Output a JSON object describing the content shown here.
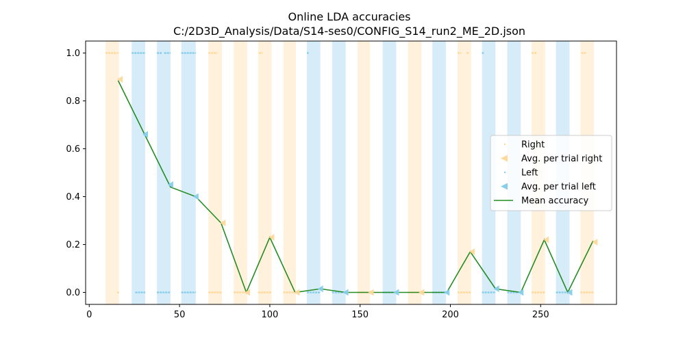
{
  "chart_data": {
    "type": "scatter",
    "title": "Online LDA accuracies",
    "subtitle": "C:/2D3D_Analysis/Data/S14-ses0/CONFIG_S14_run2_ME_2D.json",
    "xlim": [
      -2,
      292
    ],
    "ylim": [
      -0.05,
      1.05
    ],
    "xticks": [
      0,
      50,
      100,
      150,
      200,
      250
    ],
    "yticks": [
      0.0,
      0.2,
      0.4,
      0.6,
      0.8,
      1.0
    ],
    "ytick_labels": [
      "0.0",
      "0.2",
      "0.4",
      "0.6",
      "0.8",
      "1.0"
    ],
    "grid": false,
    "legend_location": "center-right",
    "colors": {
      "right": "#ffd89a",
      "right_band": "#fff1db",
      "left": "#87ceeb",
      "left_band": "#d6ecf9",
      "mean": "#228b22"
    },
    "bands": [
      {
        "class": "right",
        "x0": 9,
        "x1": 16.5
      },
      {
        "class": "left",
        "x0": 23.5,
        "x1": 31
      },
      {
        "class": "left",
        "x0": 37.5,
        "x1": 45
      },
      {
        "class": "left",
        "x0": 51,
        "x1": 59
      },
      {
        "class": "right",
        "x0": 66,
        "x1": 73.5
      },
      {
        "class": "right",
        "x0": 80,
        "x1": 87.5
      },
      {
        "class": "right",
        "x0": 93.5,
        "x1": 101
      },
      {
        "class": "right",
        "x0": 107.5,
        "x1": 114.5
      },
      {
        "class": "left",
        "x0": 120.5,
        "x1": 128
      },
      {
        "class": "left",
        "x0": 134.5,
        "x1": 142
      },
      {
        "class": "right",
        "x0": 148.5,
        "x1": 155.5
      },
      {
        "class": "left",
        "x0": 162.5,
        "x1": 170
      },
      {
        "class": "right",
        "x0": 176.5,
        "x1": 184
      },
      {
        "class": "left",
        "x0": 190,
        "x1": 197.5
      },
      {
        "class": "right",
        "x0": 204,
        "x1": 211.5
      },
      {
        "class": "left",
        "x0": 217.5,
        "x1": 225
      },
      {
        "class": "left",
        "x0": 231.5,
        "x1": 239
      },
      {
        "class": "right",
        "x0": 245,
        "x1": 252.5
      },
      {
        "class": "left",
        "x0": 258.5,
        "x1": 266
      },
      {
        "class": "right",
        "x0": 272,
        "x1": 279.5
      }
    ],
    "series": [
      {
        "name": "Right",
        "segments": [
          {
            "x0": 9,
            "x1": 16,
            "y": 1
          },
          {
            "x0": 15.5,
            "x1": 16.5,
            "y": 0
          },
          {
            "x0": 66,
            "x1": 71,
            "y": 1
          },
          {
            "x0": 66,
            "x1": 73.5,
            "y": 0
          },
          {
            "x0": 80,
            "x1": 87.5,
            "y": 0
          },
          {
            "x0": 94,
            "x1": 96,
            "y": 1
          },
          {
            "x0": 93.5,
            "x1": 101,
            "y": 0
          },
          {
            "x0": 107.5,
            "x1": 114.5,
            "y": 0
          },
          {
            "x0": 148.5,
            "x1": 155.5,
            "y": 0
          },
          {
            "x0": 176.5,
            "x1": 184,
            "y": 0
          },
          {
            "x0": 204,
            "x1": 206,
            "y": 1
          },
          {
            "x0": 209,
            "x1": 210.5,
            "y": 1
          },
          {
            "x0": 204,
            "x1": 211.5,
            "y": 0
          },
          {
            "x0": 245,
            "x1": 248,
            "y": 1
          },
          {
            "x0": 245,
            "x1": 252.5,
            "y": 0
          },
          {
            "x0": 272.5,
            "x1": 275,
            "y": 1
          },
          {
            "x0": 272,
            "x1": 279.5,
            "y": 0
          }
        ]
      },
      {
        "name": "Avg. per trial right",
        "points": [
          {
            "x": 17,
            "y": 0.89
          },
          {
            "x": 74,
            "y": 0.29
          },
          {
            "x": 87.5,
            "y": 0.0
          },
          {
            "x": 101,
            "y": 0.23
          },
          {
            "x": 115,
            "y": 0.0
          },
          {
            "x": 156,
            "y": 0.0
          },
          {
            "x": 184,
            "y": 0.0
          },
          {
            "x": 212,
            "y": 0.17
          },
          {
            "x": 253,
            "y": 0.22
          },
          {
            "x": 280,
            "y": 0.21
          }
        ]
      },
      {
        "name": "Left",
        "segments": [
          {
            "x0": 23.5,
            "x1": 31,
            "y": 1
          },
          {
            "x0": 37.5,
            "x1": 40.5,
            "y": 1
          },
          {
            "x0": 41.5,
            "x1": 45,
            "y": 1
          },
          {
            "x0": 51,
            "x1": 59,
            "y": 1
          },
          {
            "x0": 120.5,
            "x1": 121.5,
            "y": 1
          },
          {
            "x0": 217.5,
            "x1": 218.5,
            "y": 1
          },
          {
            "x0": 25.5,
            "x1": 31,
            "y": 0
          },
          {
            "x0": 37.5,
            "x1": 45,
            "y": 0
          },
          {
            "x0": 51,
            "x1": 59,
            "y": 0
          },
          {
            "x0": 120.5,
            "x1": 128,
            "y": 0
          },
          {
            "x0": 134.5,
            "x1": 142,
            "y": 0
          },
          {
            "x0": 162.5,
            "x1": 170,
            "y": 0
          },
          {
            "x0": 190,
            "x1": 197.5,
            "y": 0
          },
          {
            "x0": 217.5,
            "x1": 225,
            "y": 0
          },
          {
            "x0": 231.5,
            "x1": 239,
            "y": 0
          },
          {
            "x0": 258.5,
            "x1": 266,
            "y": 0
          }
        ]
      },
      {
        "name": "Avg. per trial left",
        "points": [
          {
            "x": 31,
            "y": 0.66
          },
          {
            "x": 45,
            "y": 0.45
          },
          {
            "x": 59,
            "y": 0.4
          },
          {
            "x": 128,
            "y": 0.015
          },
          {
            "x": 142,
            "y": 0.0
          },
          {
            "x": 170,
            "y": 0.0
          },
          {
            "x": 198,
            "y": 0.0
          },
          {
            "x": 225.5,
            "y": 0.015
          },
          {
            "x": 239,
            "y": 0.0
          },
          {
            "x": 266,
            "y": 0.0
          }
        ]
      },
      {
        "name": "Mean accuracy",
        "points": [
          {
            "x": 16,
            "y": 0.885
          },
          {
            "x": 31,
            "y": 0.655
          },
          {
            "x": 45,
            "y": 0.44
          },
          {
            "x": 59,
            "y": 0.4
          },
          {
            "x": 73,
            "y": 0.29
          },
          {
            "x": 87,
            "y": 0.0
          },
          {
            "x": 100,
            "y": 0.23
          },
          {
            "x": 114,
            "y": 0.0
          },
          {
            "x": 128,
            "y": 0.015
          },
          {
            "x": 142,
            "y": 0.0
          },
          {
            "x": 156,
            "y": 0.0
          },
          {
            "x": 170,
            "y": 0.0
          },
          {
            "x": 184,
            "y": 0.0
          },
          {
            "x": 198,
            "y": 0.0
          },
          {
            "x": 211,
            "y": 0.17
          },
          {
            "x": 225,
            "y": 0.015
          },
          {
            "x": 239,
            "y": 0.0
          },
          {
            "x": 252,
            "y": 0.22
          },
          {
            "x": 265,
            "y": 0.0
          },
          {
            "x": 279,
            "y": 0.215
          }
        ]
      }
    ]
  }
}
